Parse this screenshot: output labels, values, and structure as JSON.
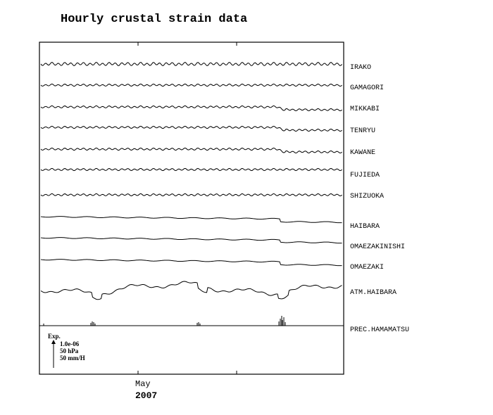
{
  "chart_data": {
    "type": "line",
    "title": "Hourly crustal strain data",
    "x_tick_labels": [
      "May"
    ],
    "x_year_label": "2007",
    "series": [
      {
        "name": "IRAKO"
      },
      {
        "name": "GAMAGORI"
      },
      {
        "name": "MIKKABI"
      },
      {
        "name": "TENRYU"
      },
      {
        "name": "KAWANE"
      },
      {
        "name": "FUJIEDA"
      },
      {
        "name": "SHIZUOKA"
      },
      {
        "name": "HAIBARA"
      },
      {
        "name": "OMAEZAKINISHI"
      },
      {
        "name": "OMAEZAKI"
      },
      {
        "name": "ATM.HAIBARA"
      },
      {
        "name": "PREC.HAMAMATSU"
      }
    ],
    "scale_legend": {
      "label": "Exp.",
      "values": [
        "1.0e-06",
        "50 hPa",
        "50 mm/H"
      ]
    },
    "grid": false,
    "legend_placement": "right"
  }
}
